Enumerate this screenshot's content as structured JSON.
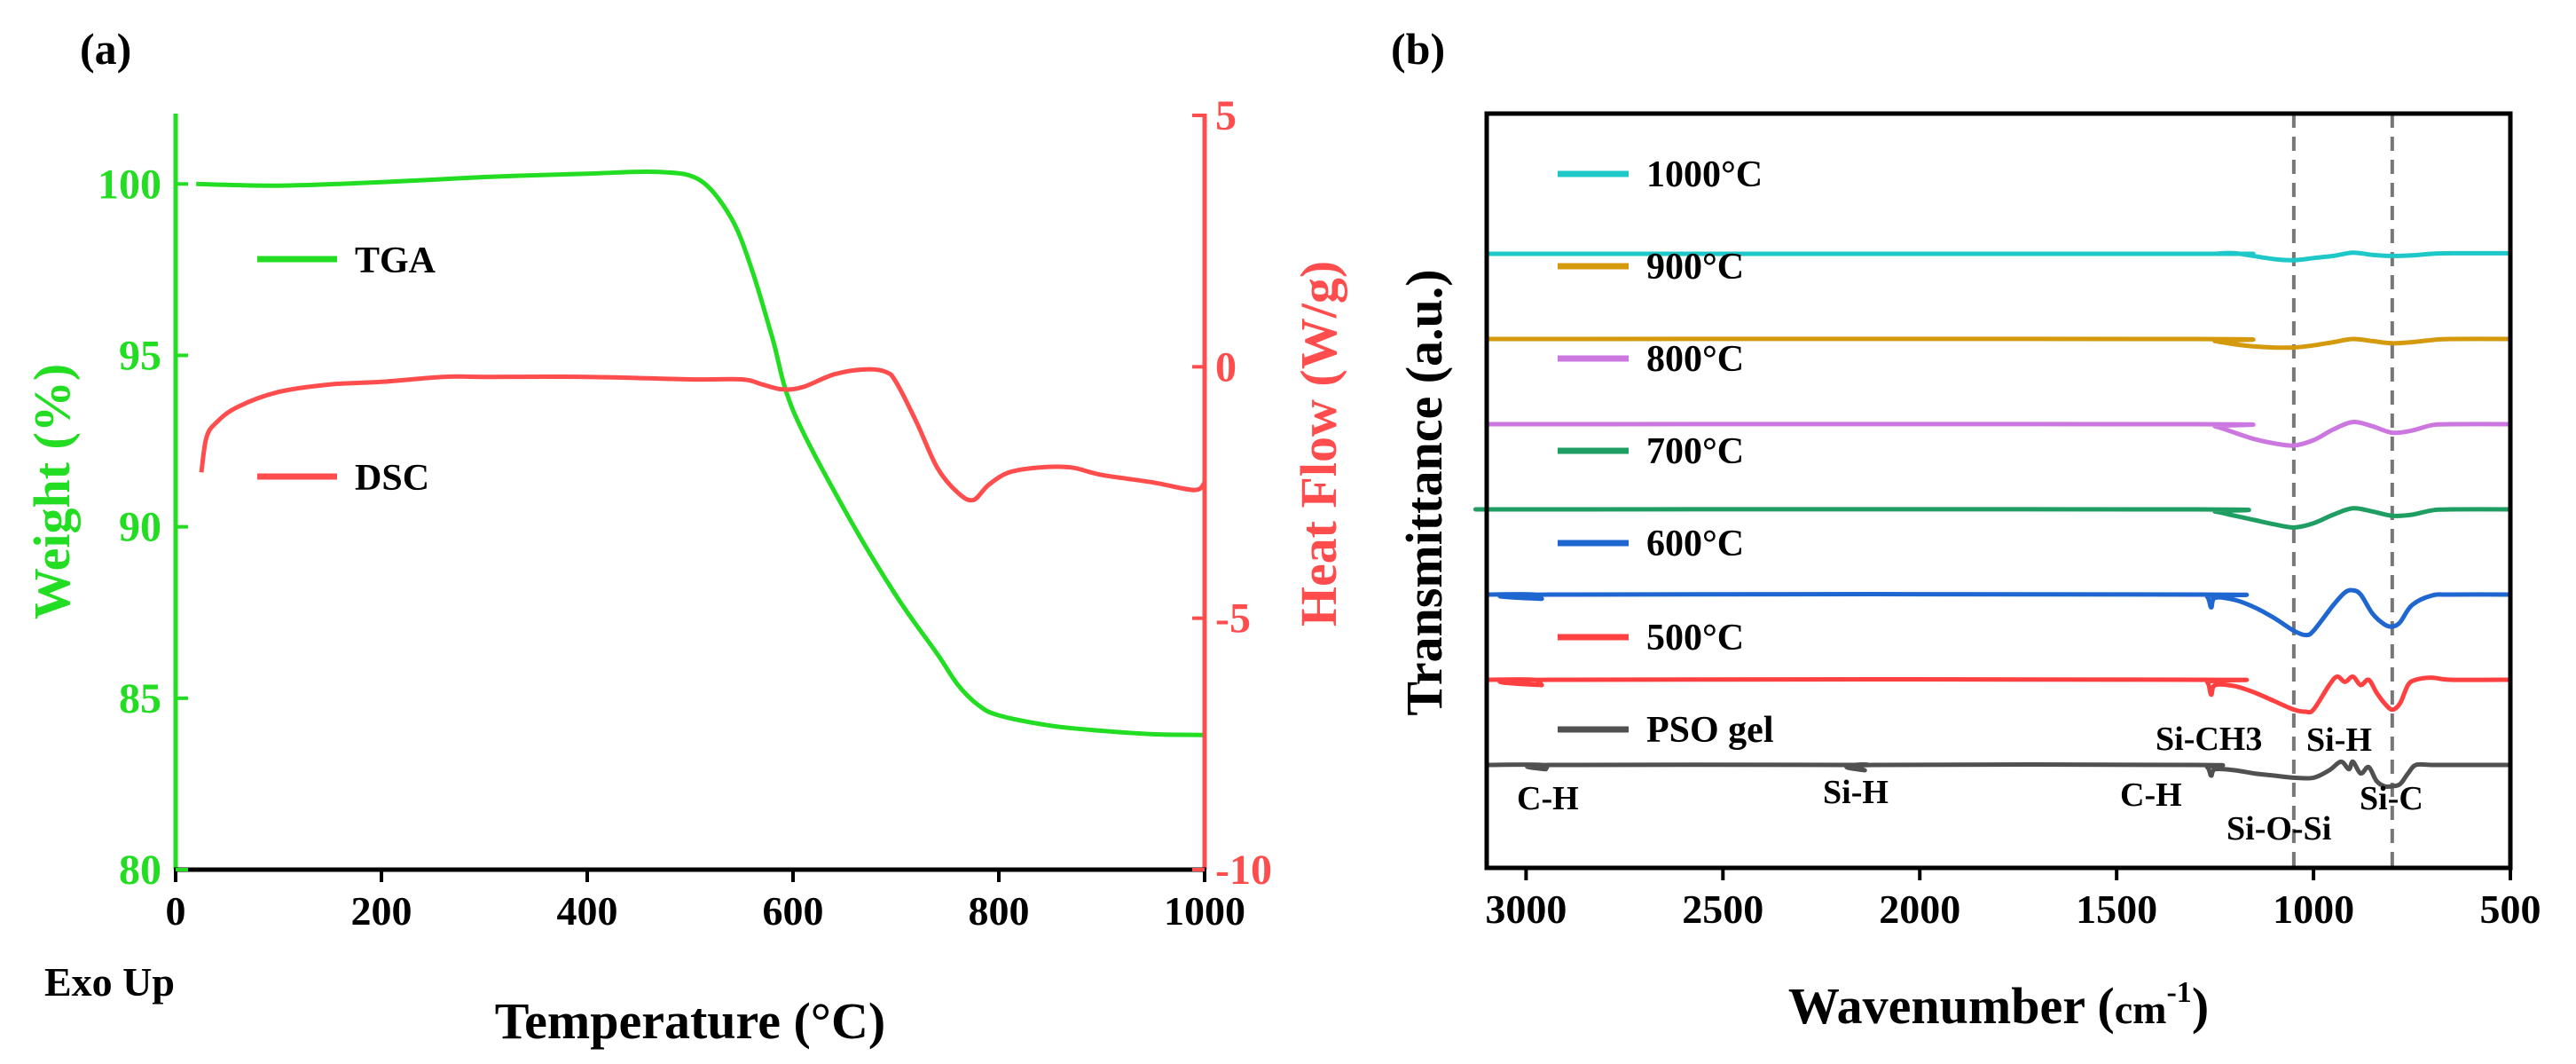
{
  "chart_data": [
    {
      "panel_label": "(a)",
      "type": "line",
      "xlabel": "Temperature (°C)",
      "ylabel_left": "Weight (%)",
      "ylabel_right": "Heat Flow (W/g)",
      "extra_label": "Exo Up",
      "xlim": [
        0,
        1000
      ],
      "ylim_left": [
        80,
        102
      ],
      "ylim_right": [
        -10,
        5
      ],
      "x_ticks": [
        "0",
        "200",
        "400",
        "600",
        "800",
        "1000"
      ],
      "y_left_ticks": [
        "80",
        "85",
        "90",
        "95",
        "100"
      ],
      "y_right_ticks": [
        "-10",
        "-5",
        "0",
        "5"
      ],
      "colors": {
        "left_axis": "#22dd22",
        "right_axis": "#ff4d4d",
        "frame": "#000000"
      },
      "legend": [
        {
          "name": "TGA",
          "color": "#22dd22"
        },
        {
          "name": "DSC",
          "color": "#ff4d4d"
        }
      ],
      "series": [
        {
          "name": "TGA",
          "axis": "left",
          "color": "#22dd22",
          "x": [
            20,
            100,
            200,
            300,
            400,
            470,
            510,
            540,
            560,
            580,
            600,
            650,
            700,
            740,
            760,
            780,
            800,
            850,
            900,
            950,
            1000
          ],
          "y": [
            100.0,
            99.95,
            100.05,
            100.2,
            100.3,
            100.35,
            100.1,
            99.0,
            97.5,
            95.5,
            93.4,
            90.5,
            88.0,
            86.3,
            85.4,
            84.8,
            84.5,
            84.2,
            84.05,
            83.95,
            83.93
          ]
        },
        {
          "name": "DSC",
          "axis": "right",
          "color": "#ff4d4d",
          "x": [
            25,
            30,
            40,
            60,
            100,
            150,
            200,
            260,
            300,
            400,
            500,
            550,
            570,
            590,
            610,
            640,
            670,
            690,
            700,
            720,
            740,
            760,
            775,
            790,
            810,
            840,
            870,
            900,
            950,
            990,
            1000
          ],
          "y": [
            -2.1,
            -1.4,
            -1.1,
            -0.8,
            -0.5,
            -0.35,
            -0.3,
            -0.2,
            -0.2,
            -0.2,
            -0.25,
            -0.25,
            -0.35,
            -0.45,
            -0.4,
            -0.15,
            -0.05,
            -0.1,
            -0.3,
            -1.1,
            -2.0,
            -2.5,
            -2.65,
            -2.35,
            -2.1,
            -2.0,
            -2.0,
            -2.15,
            -2.3,
            -2.45,
            -2.3
          ]
        }
      ]
    },
    {
      "panel_label": "(b)",
      "type": "line",
      "xlabel": "Wavenumber (cm-1)",
      "xlabel_main": "Wavenumber (",
      "xlabel_unit": "cm",
      "xlabel_exp": "-1",
      "xlabel_close": ")",
      "ylabel": "Transmittance (a.u.)",
      "xlim": [
        3100,
        500
      ],
      "x_ticks": [
        "3000",
        "2500",
        "2000",
        "1500",
        "1000",
        "500"
      ],
      "reference_lines_x": [
        1050,
        800
      ],
      "legend": [
        {
          "name": "1000°C",
          "color": "#1fc8c8"
        },
        {
          "name": "900°C",
          "color": "#d4990c"
        },
        {
          "name": "800°C",
          "color": "#cc77e0"
        },
        {
          "name": "700°C",
          "color": "#1e9e62"
        },
        {
          "name": "600°C",
          "color": "#1e66d0"
        },
        {
          "name": "500°C",
          "color": "#ff4040"
        },
        {
          "name": "PSO gel",
          "color": "#505050"
        }
      ],
      "annotations": [
        "C-H",
        "Si-H",
        "C-H",
        "Si-CH3",
        "Si-H",
        "Si-O-Si",
        "Si-C"
      ],
      "series": [
        {
          "name": "1000°C",
          "color": "#1fc8c8",
          "offset": 6,
          "x": [
            3100,
            1300,
            1250,
            1200,
            1100,
            1050,
            1000,
            950,
            900,
            850,
            800,
            750,
            700,
            650,
            500
          ],
          "y": [
            0,
            0,
            0,
            0.005,
            -0.05,
            -0.06,
            -0.04,
            -0.02,
            0.01,
            -0.01,
            -0.02,
            -0.015,
            0.0,
            0.005,
            0.005
          ]
        },
        {
          "name": "900°C",
          "color": "#d4990c",
          "offset": 5,
          "x": [
            3100,
            1300,
            1250,
            1200,
            1150,
            1100,
            1050,
            1000,
            950,
            900,
            850,
            800,
            750,
            700,
            650,
            500
          ],
          "y": [
            0,
            0,
            -0.02,
            -0.05,
            -0.07,
            -0.08,
            -0.08,
            -0.06,
            -0.03,
            0.0,
            -0.02,
            -0.04,
            -0.03,
            -0.01,
            0.0,
            0.0
          ]
        },
        {
          "name": "800°C",
          "color": "#cc77e0",
          "offset": 4,
          "x": [
            3100,
            1300,
            1250,
            1200,
            1150,
            1100,
            1050,
            1000,
            950,
            900,
            850,
            800,
            750,
            700,
            650,
            500
          ],
          "y": [
            0,
            0,
            -0.02,
            -0.08,
            -0.14,
            -0.18,
            -0.2,
            -0.15,
            -0.05,
            0.02,
            -0.02,
            -0.08,
            -0.06,
            -0.01,
            0.0,
            0.0
          ]
        },
        {
          "name": "700°C",
          "color": "#1e9e62",
          "offset": 3,
          "x": [
            3100,
            2950,
            1300,
            1250,
            1200,
            1150,
            1100,
            1050,
            1000,
            950,
            900,
            850,
            800,
            750,
            700,
            650,
            500
          ],
          "y": [
            0,
            0,
            0,
            -0.02,
            -0.06,
            -0.1,
            -0.14,
            -0.17,
            -0.13,
            -0.05,
            0.01,
            -0.02,
            -0.06,
            -0.05,
            -0.01,
            0.0,
            0.0
          ]
        },
        {
          "name": "600°C",
          "color": "#1e66d0",
          "offset": 2,
          "x": [
            3100,
            2980,
            2960,
            2940,
            1300,
            1270,
            1260,
            1250,
            1200,
            1150,
            1100,
            1050,
            1020,
            1000,
            950,
            920,
            900,
            880,
            850,
            820,
            800,
            780,
            750,
            700,
            650,
            500
          ],
          "y": [
            0,
            0,
            -0.04,
            0,
            0,
            -0.02,
            -0.12,
            -0.03,
            -0.05,
            -0.12,
            -0.22,
            -0.34,
            -0.38,
            -0.34,
            -0.1,
            0.02,
            0.04,
            0.0,
            -0.18,
            -0.28,
            -0.3,
            -0.26,
            -0.1,
            -0.01,
            0.0,
            0.0
          ]
        },
        {
          "name": "500°C",
          "color": "#ff4040",
          "offset": 1,
          "x": [
            3100,
            2980,
            2960,
            2940,
            1300,
            1270,
            1260,
            1250,
            1200,
            1150,
            1100,
            1050,
            1020,
            1000,
            960,
            940,
            920,
            900,
            880,
            860,
            840,
            820,
            800,
            780,
            760,
            740,
            700,
            650,
            500
          ],
          "y": [
            0,
            0,
            -0.05,
            0,
            0,
            -0.02,
            -0.14,
            -0.05,
            -0.06,
            -0.12,
            -0.2,
            -0.28,
            -0.3,
            -0.28,
            -0.05,
            0.03,
            -0.02,
            0.03,
            -0.05,
            0.0,
            -0.12,
            -0.22,
            -0.28,
            -0.22,
            -0.05,
            0.0,
            0.02,
            0.0,
            0.0
          ]
        },
        {
          "name": "PSO gel",
          "color": "#505050",
          "offset": 0,
          "x": [
            3100,
            2960,
            2950,
            2940,
            2200,
            2160,
            2140,
            2120,
            1300,
            1270,
            1260,
            1250,
            1200,
            1150,
            1100,
            1050,
            1000,
            960,
            930,
            910,
            900,
            880,
            860,
            840,
            820,
            800,
            780,
            760,
            740,
            700,
            650,
            500
          ],
          "y": [
            0,
            0,
            -0.04,
            0,
            0,
            0,
            -0.05,
            0,
            0,
            -0.02,
            -0.1,
            -0.04,
            -0.05,
            -0.08,
            -0.1,
            -0.12,
            -0.12,
            -0.05,
            0.03,
            -0.04,
            0.03,
            -0.08,
            -0.02,
            -0.15,
            -0.2,
            -0.2,
            -0.18,
            -0.08,
            0.0,
            0.0,
            0.0,
            0.0
          ]
        }
      ]
    }
  ]
}
